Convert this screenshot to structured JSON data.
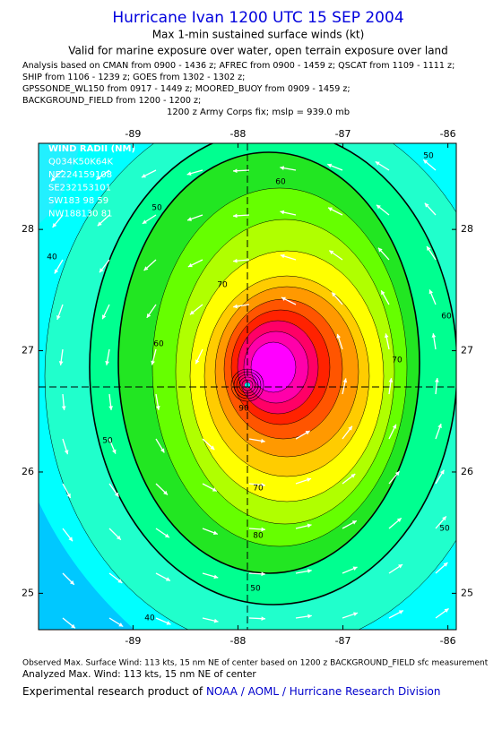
{
  "title": "Hurricane Ivan 1200 UTC 15 SEP 2004",
  "subtitle": "Max 1-min sustained surface winds (kt)",
  "validity": "Valid for marine exposure over water, open terrain exposure over land",
  "analysis_lines": [
    "Analysis based on  CMAN from 0900 - 1436 z;  AFREC from 0900 - 1459 z;  QSCAT from 1109 - 1111 z;",
    "SHIP from 1106 - 1239 z;  GOES from 1302 - 1302 z;",
    "GPSSONDE_WL150 from 0917 - 1449 z;  MOORED_BUOY from 0909 - 1459 z;",
    "BACKGROUND_FIELD from 1200 - 1200 z;"
  ],
  "fix": "1200 z Army Corps fix; mslp = 939.0 mb",
  "map": {
    "xlim": [
      -89.9,
      -85.92
    ],
    "ylim": [
      24.7,
      28.71
    ],
    "xticks": [
      -89,
      -88,
      -87,
      -86
    ],
    "yticks": [
      25,
      26,
      27,
      28
    ],
    "wind_radii": [
      "WIND RADII (NM)",
      "Q034K50K64K",
      "NE224159108",
      "SE232153101",
      "SW183 98 59",
      "NW188130 81"
    ],
    "contour_labels": [
      50,
      60,
      50,
      40,
      70,
      60,
      50,
      70,
      60,
      70,
      80,
      50,
      50,
      40,
      90
    ]
  },
  "footer": {
    "observed": "Observed Max. Surface Wind: 113 kts, 15 nm NE of center based on 1200 z BACKGROUND_FIELD sfc measurement",
    "analyzed": "Analyzed Max. Wind: 113 kts, 15 nm NE of center",
    "credit": "Experimental research product of",
    "org": "NOAA / AOML / Hurricane Research Division"
  }
}
